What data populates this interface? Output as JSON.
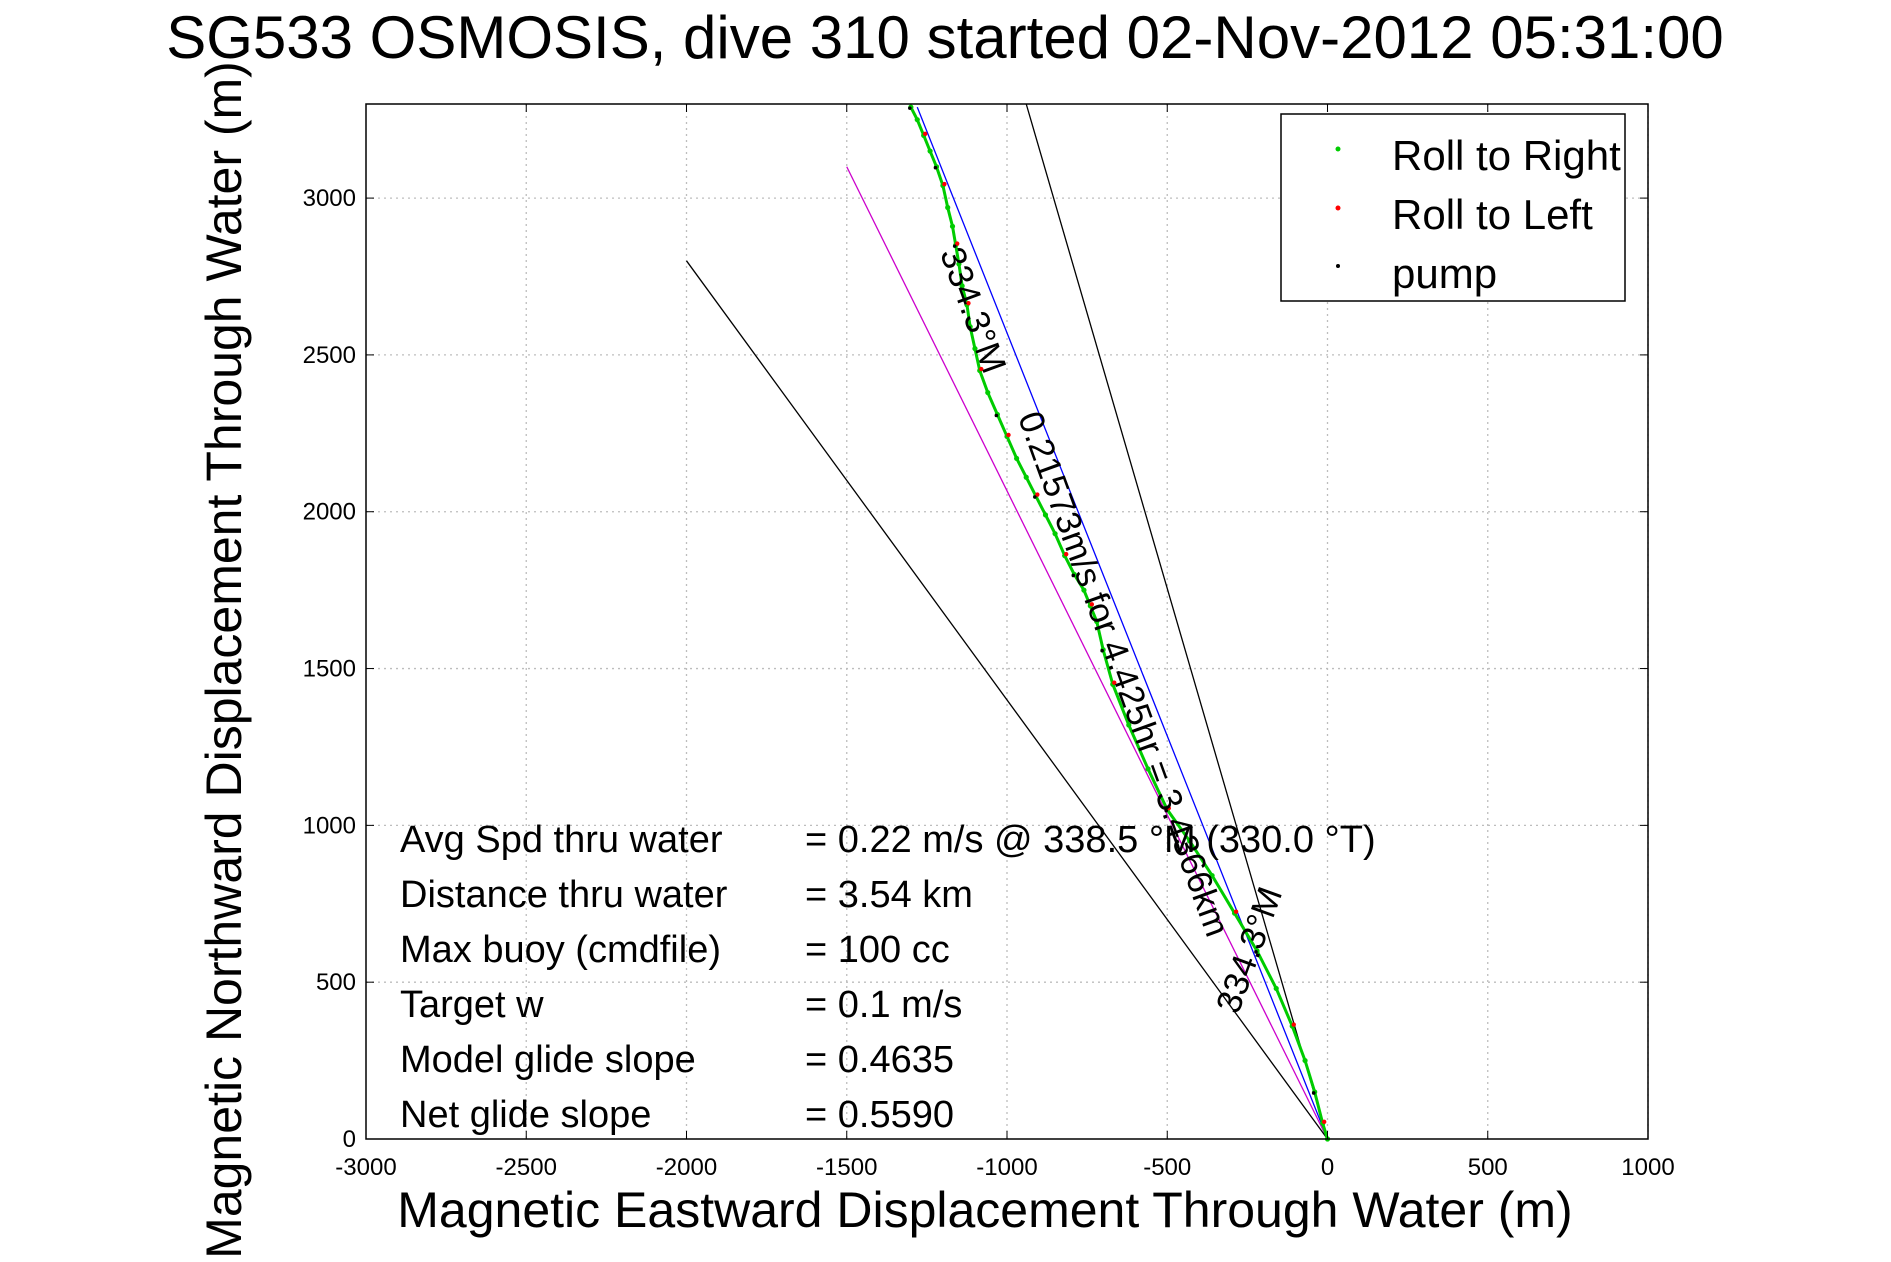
{
  "chart_data": {
    "type": "line",
    "title": "SG533 OSMOSIS, dive 310 started 02-Nov-2012 05:31:00",
    "xlabel": "Magnetic Eastward Displacement Through Water (m)",
    "ylabel": "Magnetic Northward Displacement Through Water (m)",
    "xlim": [
      -3000,
      1000
    ],
    "ylim": [
      0,
      3300
    ],
    "xticks": [
      -3000,
      -2500,
      -2000,
      -1500,
      -1000,
      -500,
      0,
      500,
      1000
    ],
    "yticks": [
      0,
      500,
      1000,
      1500,
      2000,
      2500,
      3000
    ],
    "grid": true,
    "legend_position": "top-right",
    "legend": [
      {
        "label": "Roll to Right",
        "color": "#00cc00"
      },
      {
        "label": "Roll to Left",
        "color": "#ff0000"
      },
      {
        "label": "pump",
        "color": "#000000"
      }
    ],
    "series": [
      {
        "name": "Roll to Right",
        "color": "#00cc00",
        "x": [
          0,
          -15,
          -40,
          -70,
          -110,
          -160,
          -220,
          -290,
          -360,
          -430,
          -500,
          -560,
          -620,
          -670,
          -700,
          -720,
          -740,
          -760,
          -790,
          -820,
          -850,
          -880,
          -910,
          -940,
          -970,
          -1000,
          -1030,
          -1060,
          -1085,
          -1100,
          -1115,
          -1125,
          -1140,
          -1150,
          -1160,
          -1170,
          -1185,
          -1200,
          -1220,
          -1240,
          -1260,
          -1280,
          -1300
        ],
        "y": [
          0,
          50,
          150,
          250,
          360,
          480,
          600,
          720,
          840,
          950,
          1050,
          1180,
          1320,
          1450,
          1560,
          1650,
          1700,
          1750,
          1800,
          1860,
          1930,
          1990,
          2050,
          2110,
          2170,
          2240,
          2310,
          2380,
          2450,
          2520,
          2590,
          2660,
          2720,
          2790,
          2850,
          2910,
          2970,
          3040,
          3100,
          3150,
          3200,
          3250,
          3290
        ]
      }
    ],
    "lines": [
      {
        "name": "heading line 334.3 M",
        "color": "#0000ff",
        "x": [
          0,
          -1280
        ],
        "y": [
          0,
          3290
        ]
      },
      {
        "name": "average speed heading line",
        "color": "#cc00cc",
        "x": [
          0,
          -1500
        ],
        "y": [
          0,
          3100
        ]
      },
      {
        "name": "black line A",
        "color": "#000000",
        "x": [
          0,
          -2000
        ],
        "y": [
          0,
          2800
        ]
      },
      {
        "name": "black line B",
        "color": "#000000",
        "x": [
          0,
          -940
        ],
        "y": [
          0,
          3300
        ]
      }
    ],
    "annotations": [
      {
        "text": "334.3°M",
        "x": -1140,
        "y": 2630,
        "angle": 70
      },
      {
        "text": "0.21573m/s for 4.425hr = 3.4366km",
        "x": -670,
        "y": 1470,
        "angle": 70
      },
      {
        "text": "334.3°M",
        "x": -210,
        "y": 590,
        "angle": -70
      }
    ],
    "stats": [
      {
        "label": "Avg Spd thru water",
        "value": "=  0.22 m/s @ 338.5 °M (330.0 °T)"
      },
      {
        "label": "Distance thru water",
        "value": "=  3.54 km"
      },
      {
        "label": "Max buoy (cmdfile)",
        "value": "= 100 cc"
      },
      {
        "label": "Target w",
        "value": "= 0.1 m/s"
      },
      {
        "label": "Model glide slope",
        "value": "= 0.4635"
      },
      {
        "label": "Net glide slope",
        "value": "= 0.5590"
      }
    ]
  }
}
